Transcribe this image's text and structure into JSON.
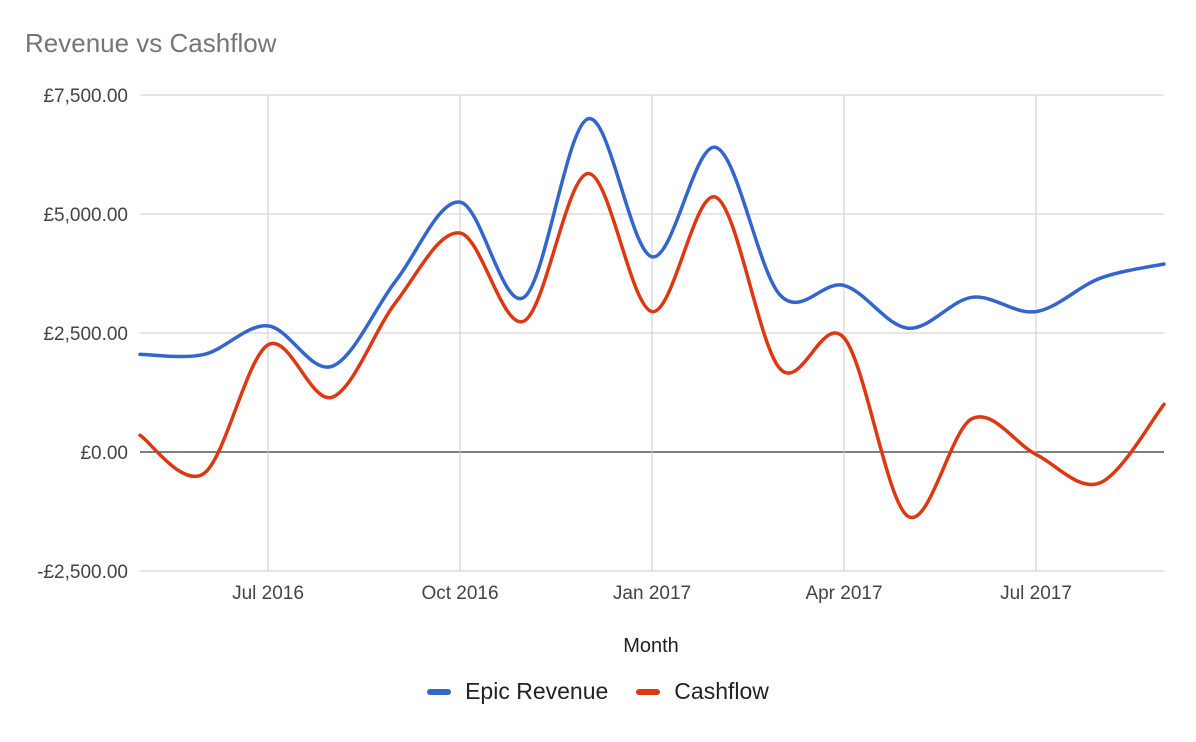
{
  "chart_data": {
    "type": "line",
    "title": "Revenue vs Cashflow",
    "xlabel": "Month",
    "ylabel": "",
    "ylim": [
      -2500,
      7500
    ],
    "yticks": [
      {
        "value": 7500,
        "label": "£7,500.00"
      },
      {
        "value": 5000,
        "label": "£5,000.00"
      },
      {
        "value": 2500,
        "label": "£2,500.00"
      },
      {
        "value": 0,
        "label": "£0.00"
      },
      {
        "value": -2500,
        "label": "-£2,500.00"
      }
    ],
    "xlim": [
      "2016-05",
      "2017-09"
    ],
    "xticks": [
      {
        "value": "2016-07",
        "label": "Jul 2016"
      },
      {
        "value": "2016-10",
        "label": "Oct 2016"
      },
      {
        "value": "2017-01",
        "label": "Jan 2017"
      },
      {
        "value": "2017-04",
        "label": "Apr 2017"
      },
      {
        "value": "2017-07",
        "label": "Jul 2017"
      }
    ],
    "x": [
      "2016-05",
      "2016-06",
      "2016-07",
      "2016-08",
      "2016-09",
      "2016-10",
      "2016-11",
      "2016-12",
      "2017-01",
      "2017-02",
      "2017-03",
      "2017-04",
      "2017-05",
      "2017-06",
      "2017-07",
      "2017-08",
      "2017-09"
    ],
    "series": [
      {
        "name": "Epic Revenue",
        "color": "#3366cc",
        "values": [
          2050,
          2050,
          2650,
          1800,
          3600,
          5250,
          3250,
          7000,
          4100,
          6400,
          3300,
          3500,
          2600,
          3250,
          2950,
          3650,
          3950
        ]
      },
      {
        "name": "Cashflow",
        "color": "#dc3912",
        "values": [
          350,
          -450,
          2250,
          1150,
          3150,
          4600,
          2750,
          5850,
          2950,
          5350,
          1750,
          2400,
          -1350,
          700,
          -50,
          -650,
          1000
        ]
      }
    ],
    "grid": true,
    "legend": "bottom"
  }
}
